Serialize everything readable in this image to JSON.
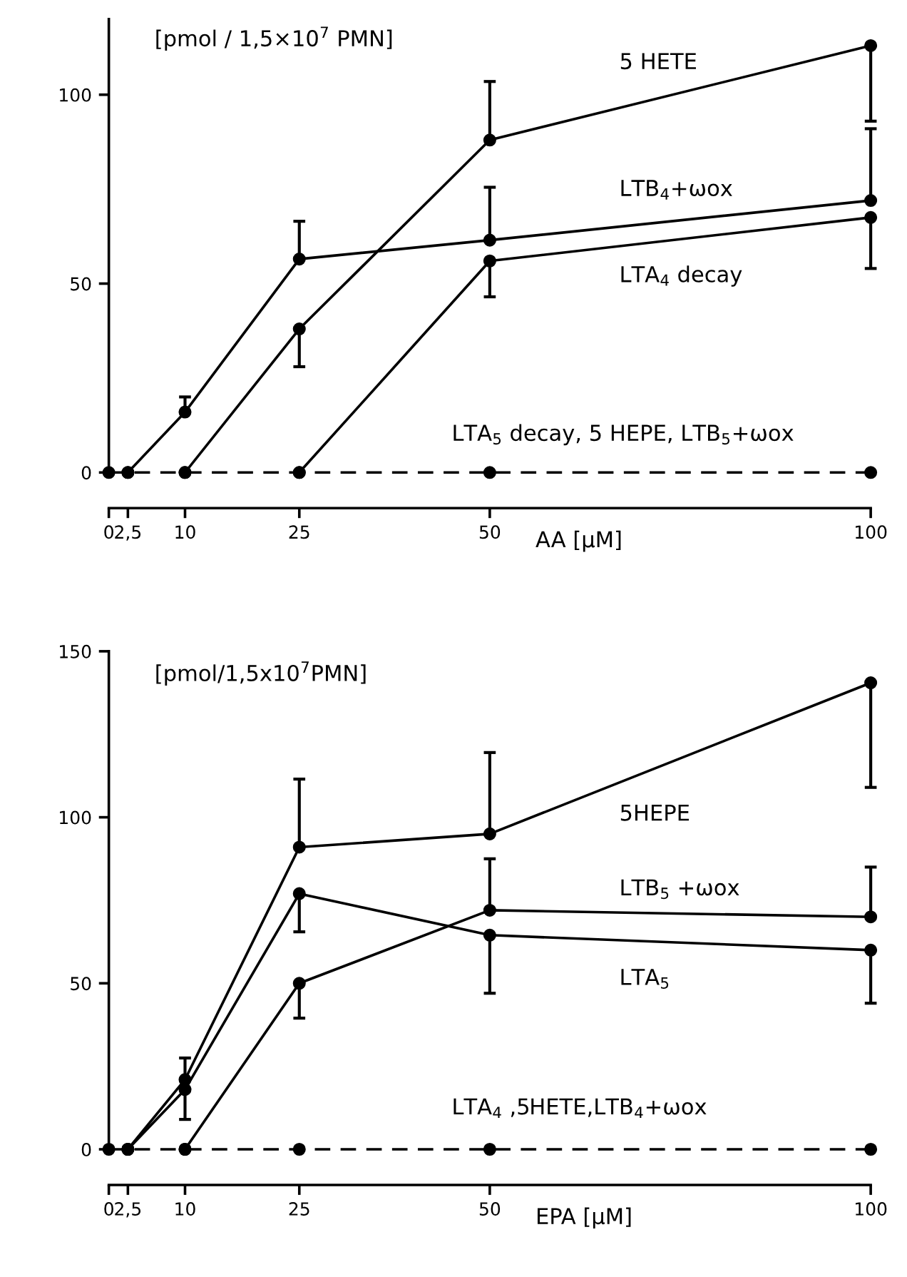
{
  "chart_data": [
    {
      "type": "line",
      "ylabel": "[pmol / 1,5×10$^{7}$ PMN]",
      "xlabel": "AA [µM]",
      "xlim": [
        0,
        100
      ],
      "ylim": [
        0,
        120
      ],
      "yticks": [
        0,
        50,
        100
      ],
      "xticks": [
        0,
        {
          "value": 2.5,
          "label": "2,5"
        },
        10,
        25,
        50,
        100
      ],
      "marker": "circle",
      "grid": false,
      "legend": false,
      "series": [
        {
          "name": "5 HETE",
          "color": "#000000",
          "x": [
            10,
            25,
            50,
            100
          ],
          "values": [
            0,
            38,
            88,
            113
          ],
          "errors": [
            null,
            [
              28,
              38
            ],
            [
              88,
              103.5
            ],
            [
              93,
              113
            ]
          ]
        },
        {
          "name": "LTB$_{4}$+ωox",
          "color": "#000000",
          "x": [
            2.5,
            10,
            25,
            50,
            100
          ],
          "values": [
            0,
            16,
            56.5,
            61.5,
            72
          ],
          "errors": [
            null,
            [
              16,
              20
            ],
            [
              56.5,
              66.5
            ],
            [
              61.5,
              75.5
            ],
            [
              72,
              91
            ]
          ]
        },
        {
          "name": "LTA$_{4}$ decay",
          "color": "#000000",
          "x": [
            25,
            50,
            100
          ],
          "values": [
            0,
            56,
            67.5
          ],
          "errors": [
            null,
            [
              46.5,
              56
            ],
            [
              54,
              67.5
            ]
          ]
        },
        {
          "name": "LTA$_{5}$ decay, 5 HEPE, LTB$_{5}$+ωox",
          "color": "#000000",
          "line_style": "dashed",
          "x": [
            0,
            2.5,
            10,
            25,
            50,
            100
          ],
          "values": [
            0,
            0,
            0,
            0,
            0,
            0
          ]
        }
      ]
    },
    {
      "type": "line",
      "ylabel": "[pmol/1,5x10$^{7}$PMN]",
      "xlabel": "EPA [µM]",
      "xlim": [
        0,
        100
      ],
      "ylim": [
        0,
        150
      ],
      "yticks": [
        0,
        50,
        100,
        150
      ],
      "xticks": [
        0,
        {
          "value": 2.5,
          "label": "2,5"
        },
        10,
        25,
        50,
        100
      ],
      "marker": "circle",
      "grid": false,
      "legend": false,
      "series": [
        {
          "name": "5HEPE",
          "color": "#000000",
          "x": [
            2.5,
            10,
            25,
            50,
            100
          ],
          "values": [
            0,
            21,
            91,
            95,
            140.5
          ],
          "errors": [
            null,
            [
              21,
              27.5
            ],
            [
              91,
              111.5
            ],
            [
              95,
              119.5
            ],
            [
              109,
              140.5
            ]
          ]
        },
        {
          "name": "LTB$_{5}$ +ωox",
          "color": "#000000",
          "x": [
            10,
            25,
            50,
            100
          ],
          "values": [
            0,
            50,
            72,
            70
          ],
          "errors": [
            null,
            [
              39.5,
              50
            ],
            [
              72,
              87.5
            ],
            [
              70,
              85
            ]
          ]
        },
        {
          "name": "LTA$_{5}$",
          "color": "#000000",
          "x": [
            2.5,
            10,
            25,
            50,
            100
          ],
          "values": [
            0,
            18,
            77,
            64.5,
            60
          ],
          "errors": [
            null,
            [
              9,
              18
            ],
            [
              65.5,
              77
            ],
            [
              47,
              64.5
            ],
            [
              44,
              60
            ]
          ]
        },
        {
          "name": "LTA$_{4}$ ,5HETE,LTB$_{4}$+ωox",
          "color": "#000000",
          "line_style": "dashed",
          "x": [
            0,
            2.5,
            10,
            25,
            50,
            100
          ],
          "values": [
            0,
            0,
            0,
            0,
            0,
            0
          ]
        }
      ]
    }
  ]
}
